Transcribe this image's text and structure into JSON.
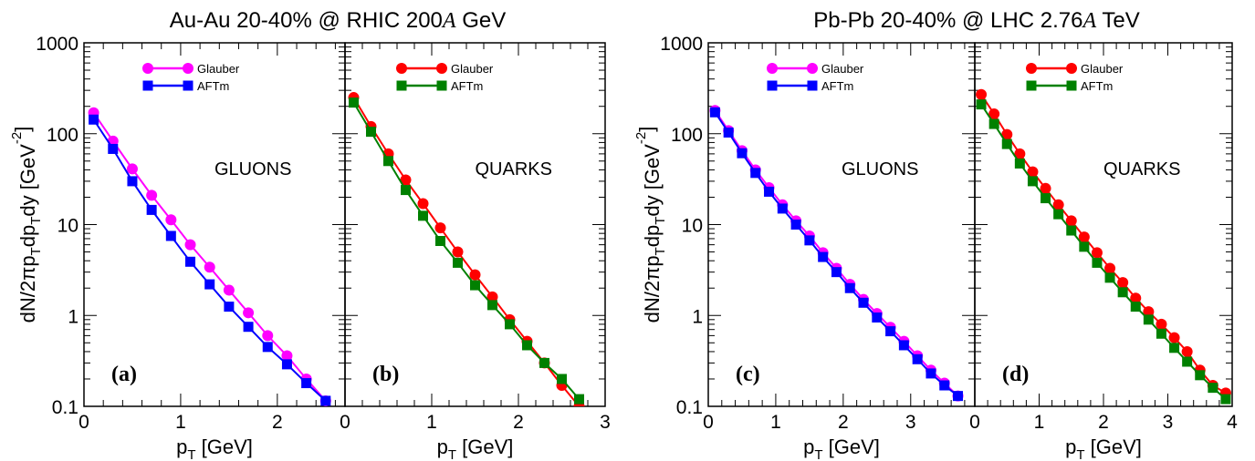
{
  "colors": {
    "glauber_gluons": "#ff00ff",
    "aftm_gluons": "#0000ff",
    "glauber_quarks": "#ff0000",
    "aftm_quarks": "#008000",
    "axis": "#000000"
  },
  "chart_data": [
    {
      "type": "line",
      "figure_title_parts": [
        "Au-Au 20-40% @ RHIC 200",
        "A",
        " GeV"
      ],
      "ylabel": "dN/2πp_T dp_T dy  [GeV^-2]",
      "ylabel_parts": [
        "dN/2πp",
        "T",
        "dp",
        "T",
        "dy  [GeV",
        "-2",
        "]"
      ],
      "yscale": "log",
      "ylim": [
        0.1,
        1000
      ],
      "y_tick_labels": [
        "0.1",
        "1",
        "10",
        "100",
        "1000"
      ],
      "panels": [
        {
          "panel_label": "(a)",
          "text": "GLUONS",
          "xlabel_parts": [
            "p",
            "T",
            " [GeV]"
          ],
          "xlim": [
            0,
            2.7
          ],
          "x_tick_labels": [
            "0",
            "1",
            "2"
          ],
          "legend_position": "top-left",
          "series": [
            {
              "name": "Glauber",
              "marker": "circle",
              "color": "#ff00ff",
              "x": [
                0.1,
                0.3,
                0.5,
                0.7,
                0.9,
                1.1,
                1.3,
                1.5,
                1.7,
                1.9,
                2.1,
                2.3,
                2.5
              ],
              "y": [
                170,
                83,
                41,
                21,
                11.3,
                6.0,
                3.4,
                1.9,
                1.07,
                0.6,
                0.36,
                0.2,
                0.115
              ]
            },
            {
              "name": "AFTm",
              "marker": "square",
              "color": "#0000ff",
              "x": [
                0.1,
                0.3,
                0.5,
                0.7,
                0.9,
                1.1,
                1.3,
                1.5,
                1.7,
                1.9,
                2.1,
                2.3,
                2.5
              ],
              "y": [
                143,
                68,
                30,
                14.5,
                7.5,
                3.9,
                2.2,
                1.25,
                0.75,
                0.45,
                0.29,
                0.18,
                0.115
              ]
            }
          ]
        },
        {
          "panel_label": "(b)",
          "text": "QUARKS",
          "xlabel_parts": [
            "p",
            "T",
            " [GeV]"
          ],
          "xlim": [
            0,
            3
          ],
          "x_tick_labels": [
            "0",
            "1",
            "2",
            "3"
          ],
          "legend_position": "top-left",
          "series": [
            {
              "name": "Glauber",
              "marker": "circle",
              "color": "#ff0000",
              "x": [
                0.1,
                0.3,
                0.5,
                0.7,
                0.9,
                1.1,
                1.3,
                1.5,
                1.7,
                1.9,
                2.1,
                2.3,
                2.5,
                2.7
              ],
              "y": [
                250,
                120,
                60,
                31,
                17,
                9.2,
                5.0,
                2.8,
                1.6,
                0.9,
                0.52,
                0.3,
                0.17,
                0.1
              ]
            },
            {
              "name": "AFTm",
              "marker": "square",
              "color": "#008000",
              "x": [
                0.1,
                0.3,
                0.5,
                0.7,
                0.9,
                1.1,
                1.3,
                1.5,
                1.7,
                1.9,
                2.1,
                2.3,
                2.5,
                2.7
              ],
              "y": [
                220,
                105,
                50,
                24,
                12.5,
                6.6,
                3.8,
                2.15,
                1.3,
                0.8,
                0.47,
                0.3,
                0.2,
                0.12
              ]
            }
          ]
        }
      ]
    },
    {
      "type": "line",
      "figure_title_parts": [
        "Pb-Pb 20-40% @ LHC 2.76",
        "A",
        " TeV"
      ],
      "ylabel": "dN/2πp_T dp_T dy  [GeV^-2]",
      "ylabel_parts": [
        "dN/2πp",
        "T",
        "dp",
        "T",
        "dy  [GeV",
        "-2",
        "]"
      ],
      "yscale": "log",
      "ylim": [
        0.1,
        1000
      ],
      "y_tick_labels": [
        "0.1",
        "1",
        "10",
        "100",
        "1000"
      ],
      "panels": [
        {
          "panel_label": "(c)",
          "text": "GLUONS",
          "xlabel_parts": [
            "p",
            "T",
            " [GeV]"
          ],
          "xlim": [
            0,
            3.95
          ],
          "x_tick_labels": [
            "0",
            "1",
            "2",
            "3"
          ],
          "legend_position": "top-left",
          "series": [
            {
              "name": "Glauber",
              "marker": "circle",
              "color": "#ff00ff",
              "x": [
                0.1,
                0.3,
                0.5,
                0.7,
                0.9,
                1.1,
                1.3,
                1.5,
                1.7,
                1.9,
                2.1,
                2.3,
                2.5,
                2.7,
                2.9,
                3.1,
                3.3,
                3.5,
                3.7
              ],
              "y": [
                180,
                108,
                65,
                40,
                25.5,
                16.5,
                11,
                7.5,
                4.9,
                3.3,
                2.2,
                1.5,
                1.05,
                0.74,
                0.52,
                0.36,
                0.25,
                0.18,
                0.13
              ]
            },
            {
              "name": "AFTm",
              "marker": "square",
              "color": "#0000ff",
              "x": [
                0.1,
                0.3,
                0.5,
                0.7,
                0.9,
                1.1,
                1.3,
                1.5,
                1.7,
                1.9,
                2.1,
                2.3,
                2.5,
                2.7,
                2.9,
                3.1,
                3.3,
                3.5,
                3.7
              ],
              "y": [
                172,
                103,
                61,
                37,
                23,
                15,
                10,
                6.7,
                4.4,
                3.0,
                2.0,
                1.38,
                0.95,
                0.67,
                0.47,
                0.33,
                0.23,
                0.17,
                0.13
              ]
            }
          ]
        },
        {
          "panel_label": "(d)",
          "text": "QUARKS",
          "xlabel_parts": [
            "p",
            "T",
            " [GeV]"
          ],
          "xlim": [
            0,
            4
          ],
          "x_tick_labels": [
            "0",
            "1",
            "2",
            "3",
            "4"
          ],
          "legend_position": "top-left",
          "series": [
            {
              "name": "Glauber",
              "marker": "circle",
              "color": "#ff0000",
              "x": [
                0.1,
                0.3,
                0.5,
                0.7,
                0.9,
                1.1,
                1.3,
                1.5,
                1.7,
                1.9,
                2.1,
                2.3,
                2.5,
                2.7,
                2.9,
                3.1,
                3.3,
                3.5,
                3.7,
                3.9
              ],
              "y": [
                270,
                165,
                98,
                60,
                38,
                25,
                16.5,
                11,
                7.3,
                4.9,
                3.3,
                2.3,
                1.55,
                1.1,
                0.8,
                0.57,
                0.4,
                0.25,
                0.17,
                0.14
              ]
            },
            {
              "name": "AFTm",
              "marker": "square",
              "color": "#008000",
              "x": [
                0.1,
                0.3,
                0.5,
                0.7,
                0.9,
                1.1,
                1.3,
                1.5,
                1.7,
                1.9,
                2.1,
                2.3,
                2.5,
                2.7,
                2.9,
                3.1,
                3.3,
                3.5,
                3.7,
                3.9
              ],
              "y": [
                210,
                128,
                77,
                47,
                30,
                19.5,
                13,
                8.6,
                5.7,
                3.8,
                2.6,
                1.8,
                1.25,
                0.9,
                0.63,
                0.44,
                0.31,
                0.22,
                0.16,
                0.12
              ]
            }
          ]
        }
      ]
    }
  ]
}
